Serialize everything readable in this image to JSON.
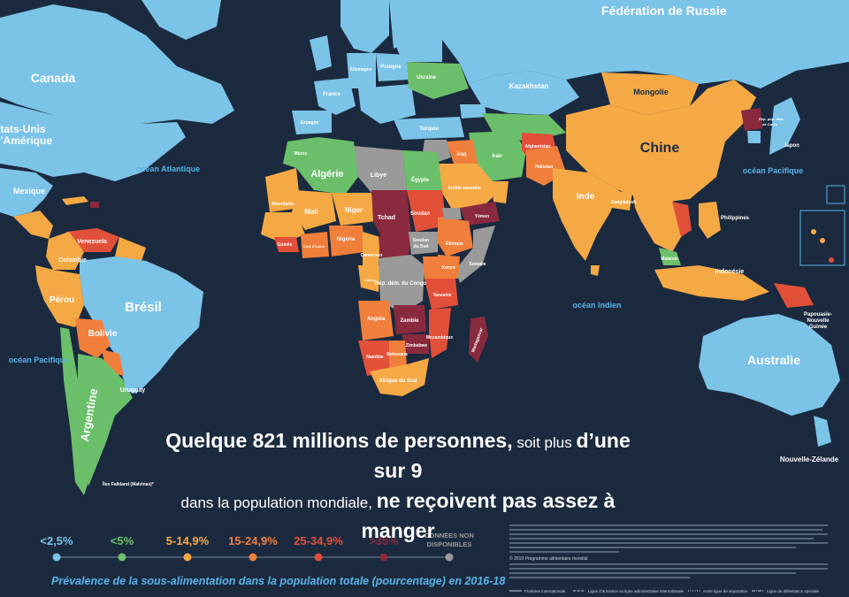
{
  "headline": {
    "part1": "Quelque 821 millions de personnes,",
    "part2": " soit plus ",
    "part3": "d’une sur 9",
    "part4": "dans la population mondiale, ",
    "part5": "ne reçoivent pas assez à manger"
  },
  "legend": {
    "items": [
      {
        "label": "<2,5%",
        "color": "#7cc3e8"
      },
      {
        "label": "<5%",
        "color": "#6cbf6a"
      },
      {
        "label": "5-14,9%",
        "color": "#f5a945"
      },
      {
        "label": "15-24,9%",
        "color": "#f07f3c"
      },
      {
        "label": "25-34,9%",
        "color": "#e25039"
      },
      {
        "label": ">35%",
        "color": "#8a2a3e"
      },
      {
        "label_line1": "DONNÉES NON",
        "label_line2": "DISPONIBLES",
        "color": "#9a9a9a"
      }
    ],
    "caption": "Prévalence de la sous-alimentation dans la population totale (pourcentage) en 2016-18"
  },
  "oceans": {
    "atlantic": "océan Atlantique",
    "pacific_east": "océan Pacifique",
    "pacific_west": "océan Pacifique",
    "indian": "océan Indien"
  },
  "countries": {
    "russia": "Fédération de Russie",
    "canada": "Canada",
    "usa_1": "États-Unis",
    "usa_2": "d’Amérique",
    "mexico": "Mexique",
    "brazil": "Brésil",
    "argentina": "Argentine",
    "bolivia": "Bolivie",
    "peru": "Pérou",
    "colombia": "Colombie",
    "venezuela": "Venezuela",
    "uruguay": "Uruguay",
    "china": "Chine",
    "mongolia": "Mongolie",
    "india": "Inde",
    "kazakhstan": "Kazakhstan",
    "ukraine": "Ukraine",
    "poland": "Pologne",
    "france": "France",
    "spain": "Espagne",
    "germany": "Allemagne",
    "turkey": "Turquie",
    "iran": "Iran",
    "iraq": "Iraq",
    "afghanistan": "Afghanistan",
    "pakistan": "Pakistan",
    "saudi": "Arabie saoudite",
    "algeria": "Algérie",
    "libya": "Libye",
    "egypt": "Égypte",
    "mali": "Mali",
    "niger": "Niger",
    "chad": "Tchad",
    "sudan": "Soudan",
    "nigeria": "Nigéria",
    "ethiopia": "Éthiopie",
    "drc": "Rép. dém. du Congo",
    "angola": "Angola",
    "zambia": "Zambie",
    "namibia": "Namibie",
    "south_africa": "Afrique du Sud",
    "madagascar": "Madagascar",
    "kenya": "Kenya",
    "japan": "Japon",
    "philippines": "Philippines",
    "indonesia": "Indonésie",
    "australia": "Australie",
    "new_zealand": "Nouvelle-Zélande",
    "png_1": "Papouasie-",
    "png_2": "Nouvelle",
    "png_3": "Guinée",
    "north_korea_1": "Rép. pop. dém.",
    "north_korea_2": "de Corée",
    "mauritania": "Mauritanie",
    "morocco": "Maroc",
    "falklands": "Îles Falkland (Malvinas)*",
    "malaysia": "Malaisie",
    "bangladesh": "Bangladesh",
    "yemen": "Yémen",
    "somalia": "Somalie",
    "tanzania": "Tanzanie",
    "mozambique": "Mozambique",
    "cameroon": "Cameroun",
    "south_sudan_1": "Soudan",
    "south_sudan_2": "du Sud",
    "guinea": "Guinée",
    "ivory_coast": "Côte d’Ivoire",
    "gabon": "Gabon",
    "botswana": "Botswana",
    "zimbabwe": "Zimbabwe"
  },
  "footnote": {
    "copyright": "© 2019 Programme alimentaire mondial",
    "boundary1": "Frontière internationale",
    "boundary2": "Ligne d’armistice ou ligne administrative internationale",
    "boundary3": "Autre ligne de séparation",
    "boundary4": "Ligne de délimitation spéciale"
  }
}
